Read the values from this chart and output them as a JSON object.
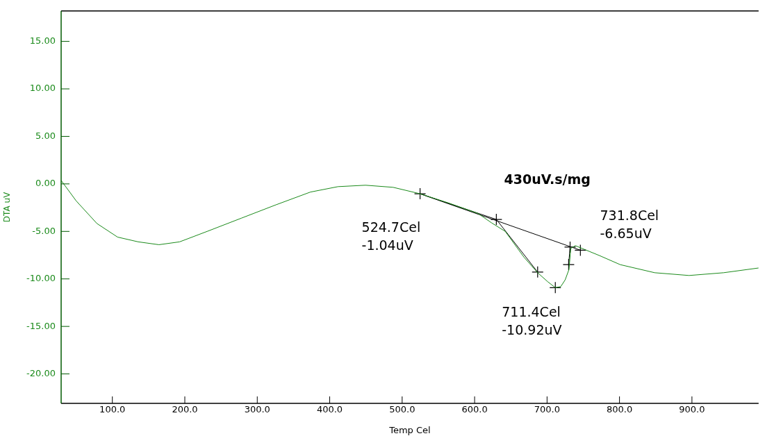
{
  "chart_data": {
    "type": "line",
    "xlabel": "Temp Cel",
    "ylabel": "DTA uV",
    "xlim": [
      29.3,
      992
    ],
    "ylim": [
      -23.1,
      18.2
    ],
    "xticks": [
      {
        "value": 100,
        "label": "100.0"
      },
      {
        "value": 200,
        "label": "200.0"
      },
      {
        "value": 300,
        "label": "300.0"
      },
      {
        "value": 400,
        "label": "400.0"
      },
      {
        "value": 500,
        "label": "500.0"
      },
      {
        "value": 600,
        "label": "600.0"
      },
      {
        "value": 700,
        "label": "700.0"
      },
      {
        "value": 800,
        "label": "800.0"
      },
      {
        "value": 900,
        "label": "900.0"
      }
    ],
    "yticks": [
      {
        "value": -20,
        "label": "-20.00"
      },
      {
        "value": -15,
        "label": "-15.00"
      },
      {
        "value": -10,
        "label": "-10.00"
      },
      {
        "value": -5,
        "label": "-5.00"
      },
      {
        "value": 0,
        "label": "0.00"
      },
      {
        "value": 5,
        "label": "5.00"
      },
      {
        "value": 10,
        "label": "10.00"
      },
      {
        "value": 15,
        "label": "15.00"
      }
    ],
    "grid": false,
    "legend": false,
    "line_style": "solid",
    "series": [
      {
        "color": "#1a8a1a",
        "marker": "none",
        "x": [
          29.3,
          50.2,
          78.7,
          107.2,
          135.7,
          164.3,
          192.8,
          230.8,
          278.3,
          325.9,
          373.4,
          411.4,
          449.4,
          487.5,
          524.7,
          563.7,
          604.5,
          623.4,
          642.3,
          668,
          687,
          701,
          711.4,
          719,
          725,
          730.3,
          732.7,
          739,
          772.5,
          801,
          848.6,
          896,
          943.7,
          992
        ],
        "values": [
          0.36,
          -1.8,
          -4.17,
          -5.6,
          -6.1,
          -6.4,
          -6.1,
          -5.0,
          -3.6,
          -2.2,
          -0.86,
          -0.29,
          -0.14,
          -0.36,
          -1.04,
          -2.0,
          -3.1,
          -4.1,
          -5.0,
          -7.7,
          -9.35,
          -10.3,
          -10.92,
          -10.8,
          -10.1,
          -9.0,
          -6.8,
          -6.5,
          -7.55,
          -8.5,
          -9.35,
          -9.64,
          -9.35,
          -8.85
        ]
      },
      {
        "color": "#000000",
        "marker": "none",
        "x": [
          524.7,
          746
        ],
        "values": [
          -1.04,
          -6.98
        ]
      },
      {
        "color": "#000000",
        "marker": "none",
        "x": [
          524.7,
          630,
          687
        ],
        "values": [
          -1.04,
          -3.74,
          -9.28
        ]
      },
      {
        "color": "#000000",
        "marker": "none",
        "x": [
          729.8,
          731.8
        ],
        "values": [
          -8.49,
          -6.65
        ]
      },
      {
        "type": "scatter",
        "color": "#000000",
        "marker": "cross",
        "x": [
          524.7,
          630,
          687,
          711.4,
          729.8,
          731.8,
          746
        ],
        "values": [
          -1.04,
          -3.74,
          -9.28,
          -10.92,
          -8.49,
          -6.65,
          -6.98
        ]
      }
    ],
    "annotations": [
      "430uV.s/mg",
      {
        "text": "524.7Cel\n-1.04uV",
        "x": 524.7,
        "y": -1.04
      },
      {
        "text": "731.8Cel\n-6.65uV",
        "x": 731.8,
        "y": -6.65
      },
      {
        "text": "711.4Cel\n-10.92uV",
        "x": 711.4,
        "y": -10.92
      }
    ]
  }
}
